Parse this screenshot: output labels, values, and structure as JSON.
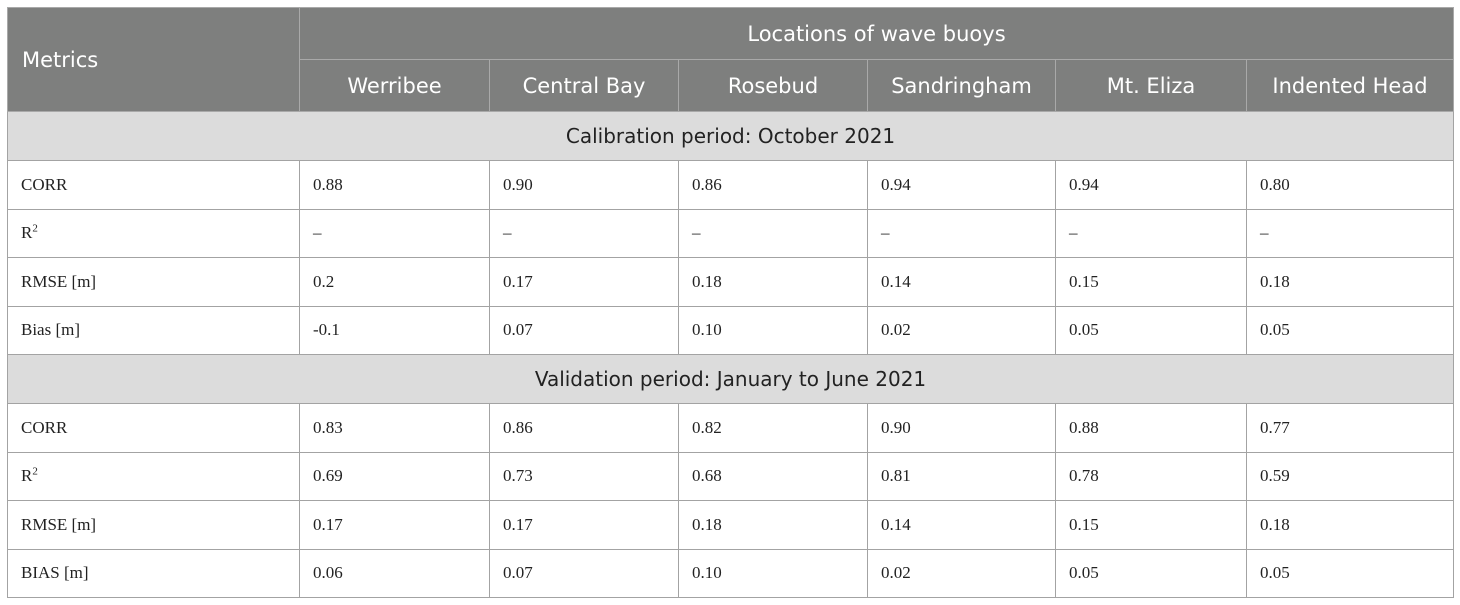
{
  "header": {
    "metrics_label": "Metrics",
    "group_label": "Locations of wave buoys",
    "locations": [
      "Werribee",
      "Central Bay",
      "Rosebud",
      "Sandringham",
      "Mt. Eliza",
      "Indented Head"
    ]
  },
  "sections": [
    {
      "title": "Calibration period: October 2021",
      "rows": [
        {
          "metric": "CORR",
          "sup": "",
          "values": [
            "0.88",
            "0.90",
            "0.86",
            "0.94",
            "0.94",
            "0.80"
          ]
        },
        {
          "metric": "R",
          "sup": "2",
          "values": [
            "–",
            "–",
            "–",
            "–",
            "–",
            "–"
          ]
        },
        {
          "metric": "RMSE [m]",
          "sup": "",
          "values": [
            "0.2",
            "0.17",
            "0.18",
            "0.14",
            "0.15",
            "0.18"
          ]
        },
        {
          "metric": "Bias [m]",
          "sup": "",
          "values": [
            "-0.1",
            "0.07",
            "0.10",
            "0.02",
            "0.05",
            "0.05"
          ]
        }
      ]
    },
    {
      "title": "Validation period: January to June 2021",
      "rows": [
        {
          "metric": "CORR",
          "sup": "",
          "values": [
            "0.83",
            "0.86",
            "0.82",
            "0.90",
            "0.88",
            "0.77"
          ]
        },
        {
          "metric": "R",
          "sup": "2",
          "values": [
            "0.69",
            "0.73",
            "0.68",
            "0.81",
            "0.78",
            "0.59"
          ]
        },
        {
          "metric": "RMSE [m]",
          "sup": "",
          "values": [
            "0.17",
            "0.17",
            "0.18",
            "0.14",
            "0.15",
            "0.18"
          ]
        },
        {
          "metric": "BIAS [m]",
          "sup": "",
          "values": [
            "0.06",
            "0.07",
            "0.10",
            "0.02",
            "0.05",
            "0.05"
          ]
        }
      ]
    }
  ]
}
